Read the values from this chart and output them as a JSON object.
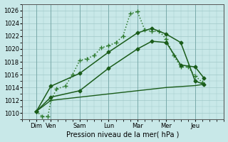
{
  "xlabel": "Pression niveau de la mer( hPa )",
  "background_color": "#c8e8e8",
  "grid_color": "#a0c8c8",
  "xlim": [
    0,
    7
  ],
  "ylim": [
    1009,
    1027
  ],
  "yticks": [
    1010,
    1012,
    1014,
    1016,
    1018,
    1020,
    1022,
    1024,
    1026
  ],
  "xtick_labels": [
    "Dim",
    "Ven",
    "Sam",
    "Lun",
    "Mar",
    "Mer",
    "Jeu"
  ],
  "xtick_positions": [
    0.5,
    1.0,
    2.0,
    3.0,
    4.0,
    5.0,
    6.0
  ],
  "series": [
    {
      "x": [
        0.5,
        0.7,
        0.9,
        1.0,
        1.2,
        1.5,
        1.75,
        2.0,
        2.25,
        2.5,
        2.75,
        3.0,
        3.25,
        3.5,
        3.75,
        4.0,
        4.25,
        4.5,
        4.75,
        5.0,
        5.25,
        5.5,
        5.75,
        6.0,
        6.25
      ],
      "y": [
        1010.3,
        1009.5,
        1009.5,
        1012.0,
        1013.8,
        1014.2,
        1016.0,
        1018.2,
        1018.5,
        1019.0,
        1020.2,
        1020.5,
        1021.0,
        1022.0,
        1025.5,
        1025.8,
        1023.0,
        1022.7,
        1022.8,
        1021.5,
        1019.0,
        1017.2,
        1017.2,
        1015.8,
        1014.8
      ],
      "style": "dotted",
      "marker": "+",
      "markersize": 4,
      "linewidth": 1.1,
      "color": "#2d7a2d"
    },
    {
      "x": [
        0.5,
        1.0,
        2.0,
        3.0,
        4.0,
        4.5,
        5.0,
        5.5,
        6.0,
        6.3
      ],
      "y": [
        1010.3,
        1014.2,
        1016.2,
        1019.5,
        1022.5,
        1023.2,
        1022.3,
        1021.0,
        1015.0,
        1014.5
      ],
      "style": "-",
      "marker": "D",
      "markersize": 2.5,
      "linewidth": 1.1,
      "color": "#1a5c1a"
    },
    {
      "x": [
        0.5,
        1.0,
        2.0,
        3.0,
        4.0,
        4.5,
        5.0,
        5.5,
        6.0,
        6.3
      ],
      "y": [
        1010.3,
        1012.5,
        1013.5,
        1017.0,
        1020.0,
        1021.2,
        1021.0,
        1017.5,
        1017.2,
        1015.5
      ],
      "style": "-",
      "marker": "D",
      "markersize": 2.5,
      "linewidth": 1.1,
      "color": "#1a5c1a"
    },
    {
      "x": [
        0.5,
        1.0,
        2.0,
        3.0,
        4.0,
        5.0,
        6.0,
        6.3
      ],
      "y": [
        1010.3,
        1012.0,
        1012.5,
        1013.0,
        1013.5,
        1014.0,
        1014.3,
        1014.5
      ],
      "style": "-",
      "marker": null,
      "markersize": 2,
      "linewidth": 1.0,
      "color": "#1a5c1a"
    }
  ]
}
